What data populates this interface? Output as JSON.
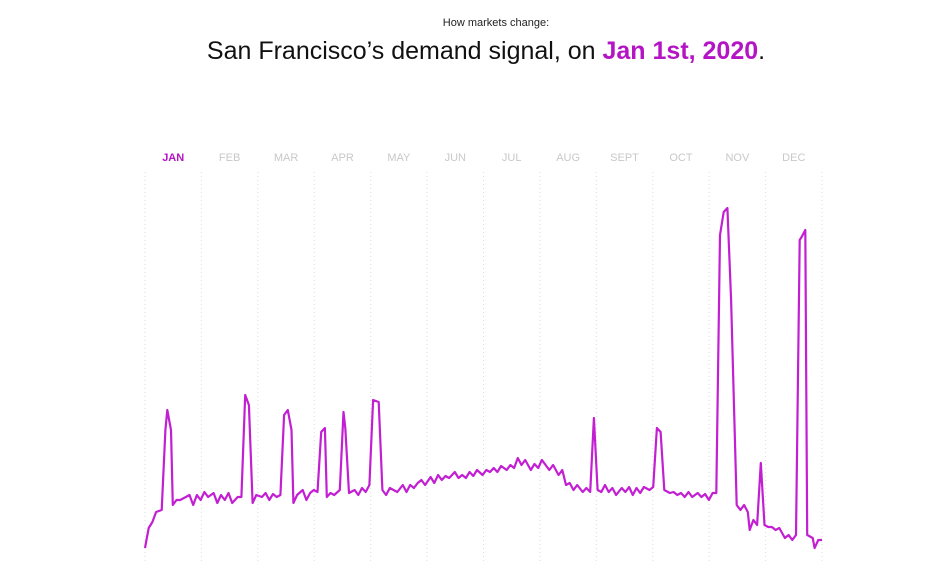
{
  "chart_data": {
    "type": "line",
    "subtitle": "How markets change:",
    "title": "San Francisco’s demand signal, on ",
    "title_date": "Jan 1st, 2020",
    "title_end": ".",
    "categories": [
      "JAN",
      "FEB",
      "MAR",
      "APR",
      "MAY",
      "JUN",
      "JUL",
      "AUG",
      "SEPT",
      "OCT",
      "NOV",
      "DEC"
    ],
    "highlight_category": "JAN",
    "highlight_color": "#b415c4",
    "label_color": "#c8c8c8",
    "series": [
      {
        "color": "#c21fd2",
        "x": [
          0,
          2,
          4,
          6,
          9,
          11,
          12,
          14,
          15,
          17,
          19,
          22,
          24,
          26,
          28,
          30,
          32,
          34,
          37,
          39,
          41,
          43,
          45,
          47,
          50,
          52,
          54,
          56,
          58,
          60,
          63,
          65,
          67,
          69,
          71,
          73,
          75,
          77,
          79,
          80,
          82,
          85,
          87,
          89,
          91,
          93,
          95,
          97,
          98,
          100,
          102,
          105,
          107,
          108,
          110,
          113,
          115,
          117,
          119,
          121,
          123,
          126,
          128,
          130,
          132,
          134,
          136,
          139,
          141,
          143,
          145,
          147,
          149,
          151,
          154,
          156,
          158,
          160,
          162,
          164,
          167,
          169,
          171,
          173,
          175,
          177,
          179,
          182,
          184,
          186,
          188,
          190,
          192,
          195,
          197,
          199,
          201,
          203,
          205,
          208,
          210,
          212,
          214,
          216,
          218,
          220,
          223,
          225,
          227,
          229,
          231,
          233,
          236,
          238,
          240,
          242,
          244,
          246,
          248,
          250,
          252,
          254,
          257,
          259,
          261,
          263,
          265,
          267,
          269,
          272,
          274,
          276,
          278,
          280,
          283,
          285,
          287,
          289,
          291,
          293,
          295,
          298,
          300,
          302,
          304,
          306,
          308,
          310,
          312,
          314,
          316,
          319,
          321,
          323,
          325,
          326,
          328,
          330,
          332,
          334,
          336,
          338,
          340,
          342,
          345,
          347,
          349,
          351,
          353,
          354,
          356,
          357,
          360,
          361,
          363,
          365
        ],
        "values": [
          12,
          32,
          38,
          48,
          50,
          130,
          150,
          130,
          55,
          60,
          60,
          63,
          65,
          55,
          65,
          60,
          68,
          63,
          67,
          57,
          65,
          60,
          67,
          57,
          63,
          63,
          165,
          155,
          57,
          65,
          63,
          67,
          60,
          66,
          63,
          65,
          145,
          150,
          130,
          57,
          65,
          70,
          60,
          67,
          70,
          68,
          128,
          132,
          63,
          67,
          65,
          70,
          148,
          132,
          67,
          70,
          65,
          72,
          68,
          75,
          160,
          158,
          70,
          65,
          72,
          70,
          68,
          75,
          68,
          75,
          72,
          77,
          80,
          75,
          83,
          77,
          85,
          80,
          84,
          82,
          88,
          82,
          85,
          82,
          88,
          84,
          90,
          85,
          90,
          88,
          92,
          88,
          94,
          90,
          95,
          92,
          102,
          95,
          100,
          90,
          96,
          92,
          100,
          95,
          90,
          95,
          85,
          90,
          75,
          77,
          70,
          75,
          68,
          72,
          68,
          142,
          70,
          68,
          75,
          68,
          72,
          65,
          72,
          68,
          73,
          65,
          72,
          67,
          73,
          70,
          73,
          132,
          128,
          70,
          67,
          68,
          65,
          67,
          63,
          68,
          63,
          67,
          63,
          66,
          60,
          67,
          67,
          325,
          348,
          352,
          260,
          55,
          50,
          55,
          48,
          30,
          40,
          35,
          97,
          35,
          33,
          33,
          30,
          32,
          22,
          25,
          20,
          25,
          320,
          323,
          330,
          25,
          22,
          12,
          20,
          20
        ]
      }
    ],
    "grid": true
  }
}
